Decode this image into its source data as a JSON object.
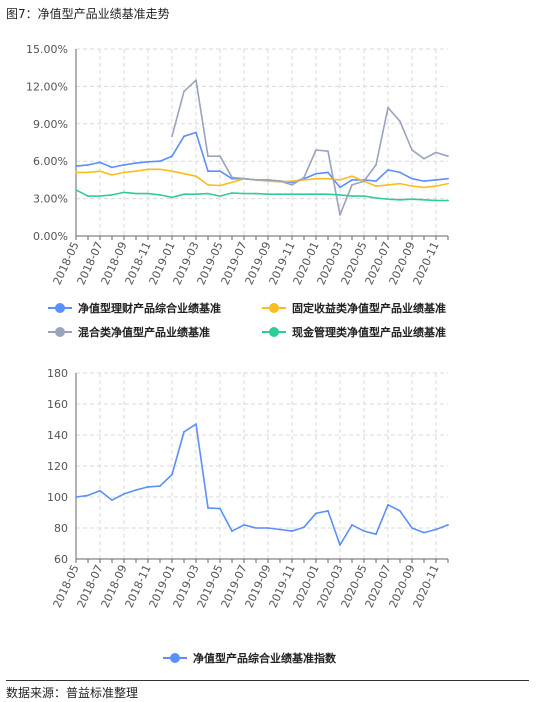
{
  "figure_title": "图7：净值型产品业绩基准走势",
  "source_note": "数据来源：普益标准整理",
  "chart_data": [
    {
      "type": "line",
      "x": [
        "2018-05",
        "2018-06",
        "2018-07",
        "2018-08",
        "2018-09",
        "2018-10",
        "2018-11",
        "2018-12",
        "2019-01",
        "2019-02",
        "2019-03",
        "2019-04",
        "2019-05",
        "2019-06",
        "2019-07",
        "2019-08",
        "2019-09",
        "2019-10",
        "2019-11",
        "2019-12",
        "2020-01",
        "2020-02",
        "2020-03",
        "2020-04",
        "2020-05",
        "2020-06",
        "2020-07",
        "2020-08",
        "2020-09",
        "2020-10",
        "2020-11",
        "2020-12"
      ],
      "xtick_labels": [
        "2018-05",
        "2018-07",
        "2018-09",
        "2018-11",
        "2019-01",
        "2019-03",
        "2019-05",
        "2019-07",
        "2019-09",
        "2019-11",
        "2020-01",
        "2020-03",
        "2020-05",
        "2020-07",
        "2020-09",
        "2020-11"
      ],
      "ylim": [
        0,
        15
      ],
      "ytick_labels": [
        "0.00%",
        "3.00%",
        "6.00%",
        "9.00%",
        "12.00%",
        "15.00%"
      ],
      "grid": true,
      "legend_position": "bottom",
      "series": [
        {
          "name": "净值型理财产品综合业绩基准",
          "color": "#5b8ff9",
          "values": [
            5.6,
            5.7,
            5.9,
            5.5,
            5.7,
            5.85,
            5.95,
            6.0,
            6.4,
            8.0,
            8.3,
            5.2,
            5.2,
            4.6,
            4.6,
            4.5,
            4.5,
            4.4,
            4.3,
            4.6,
            5.0,
            5.1,
            3.9,
            4.5,
            4.5,
            4.4,
            5.3,
            5.1,
            4.6,
            4.4,
            4.5,
            4.6
          ]
        },
        {
          "name": "固定收益类净值型产品业绩基准",
          "color": "#fbbd1e",
          "values": [
            5.1,
            5.1,
            5.2,
            4.9,
            5.1,
            5.2,
            5.35,
            5.35,
            5.2,
            5.0,
            4.8,
            4.1,
            4.05,
            4.3,
            4.6,
            4.5,
            4.4,
            4.35,
            4.4,
            4.5,
            4.6,
            4.6,
            4.5,
            4.8,
            4.4,
            4.0,
            4.1,
            4.2,
            4.0,
            3.9,
            4.0,
            4.2
          ]
        },
        {
          "name": "混合类净值型产品业绩基准",
          "color": "#99a3bb",
          "values": [
            null,
            null,
            null,
            null,
            null,
            null,
            null,
            null,
            8.0,
            11.6,
            12.5,
            6.4,
            6.4,
            4.7,
            4.6,
            4.5,
            4.5,
            4.4,
            4.1,
            4.7,
            6.9,
            6.8,
            1.7,
            4.1,
            4.4,
            5.7,
            10.3,
            9.2,
            6.9,
            6.2,
            6.7,
            6.4
          ]
        },
        {
          "name": "现金管理类净值型产品业绩基准",
          "color": "#31cc93",
          "values": [
            3.7,
            3.2,
            3.2,
            3.3,
            3.5,
            3.4,
            3.4,
            3.3,
            3.1,
            3.35,
            3.35,
            3.4,
            3.2,
            3.45,
            3.4,
            3.4,
            3.35,
            3.35,
            3.35,
            3.35,
            3.35,
            3.35,
            3.3,
            3.2,
            3.2,
            3.05,
            2.95,
            2.9,
            2.95,
            2.9,
            2.85,
            2.85
          ]
        }
      ]
    },
    {
      "type": "line",
      "x": [
        "2018-05",
        "2018-06",
        "2018-07",
        "2018-08",
        "2018-09",
        "2018-10",
        "2018-11",
        "2018-12",
        "2019-01",
        "2019-02",
        "2019-03",
        "2019-04",
        "2019-05",
        "2019-06",
        "2019-07",
        "2019-08",
        "2019-09",
        "2019-10",
        "2019-11",
        "2019-12",
        "2020-01",
        "2020-02",
        "2020-03",
        "2020-04",
        "2020-05",
        "2020-06",
        "2020-07",
        "2020-08",
        "2020-09",
        "2020-10",
        "2020-11",
        "2020-12"
      ],
      "xtick_labels": [
        "2018-05",
        "2018-07",
        "2018-09",
        "2018-11",
        "2019-01",
        "2019-03",
        "2019-05",
        "2019-07",
        "2019-09",
        "2019-11",
        "2020-01",
        "2020-03",
        "2020-05",
        "2020-07",
        "2020-09",
        "2020-11"
      ],
      "ylim": [
        60,
        180
      ],
      "ytick_labels": [
        "60",
        "80",
        "100",
        "120",
        "140",
        "160",
        "180"
      ],
      "grid": true,
      "legend_position": "bottom",
      "series": [
        {
          "name": "净值型产品综合业绩基准指数",
          "color": "#5b8ff9",
          "values": [
            100,
            101,
            104,
            98,
            102,
            104.5,
            106.5,
            107,
            114.5,
            142,
            147,
            93,
            92.5,
            78,
            82,
            80,
            80,
            79,
            78,
            80.5,
            89.5,
            91,
            69,
            82,
            78,
            76,
            95,
            91,
            80,
            77,
            79,
            82
          ]
        }
      ]
    }
  ]
}
